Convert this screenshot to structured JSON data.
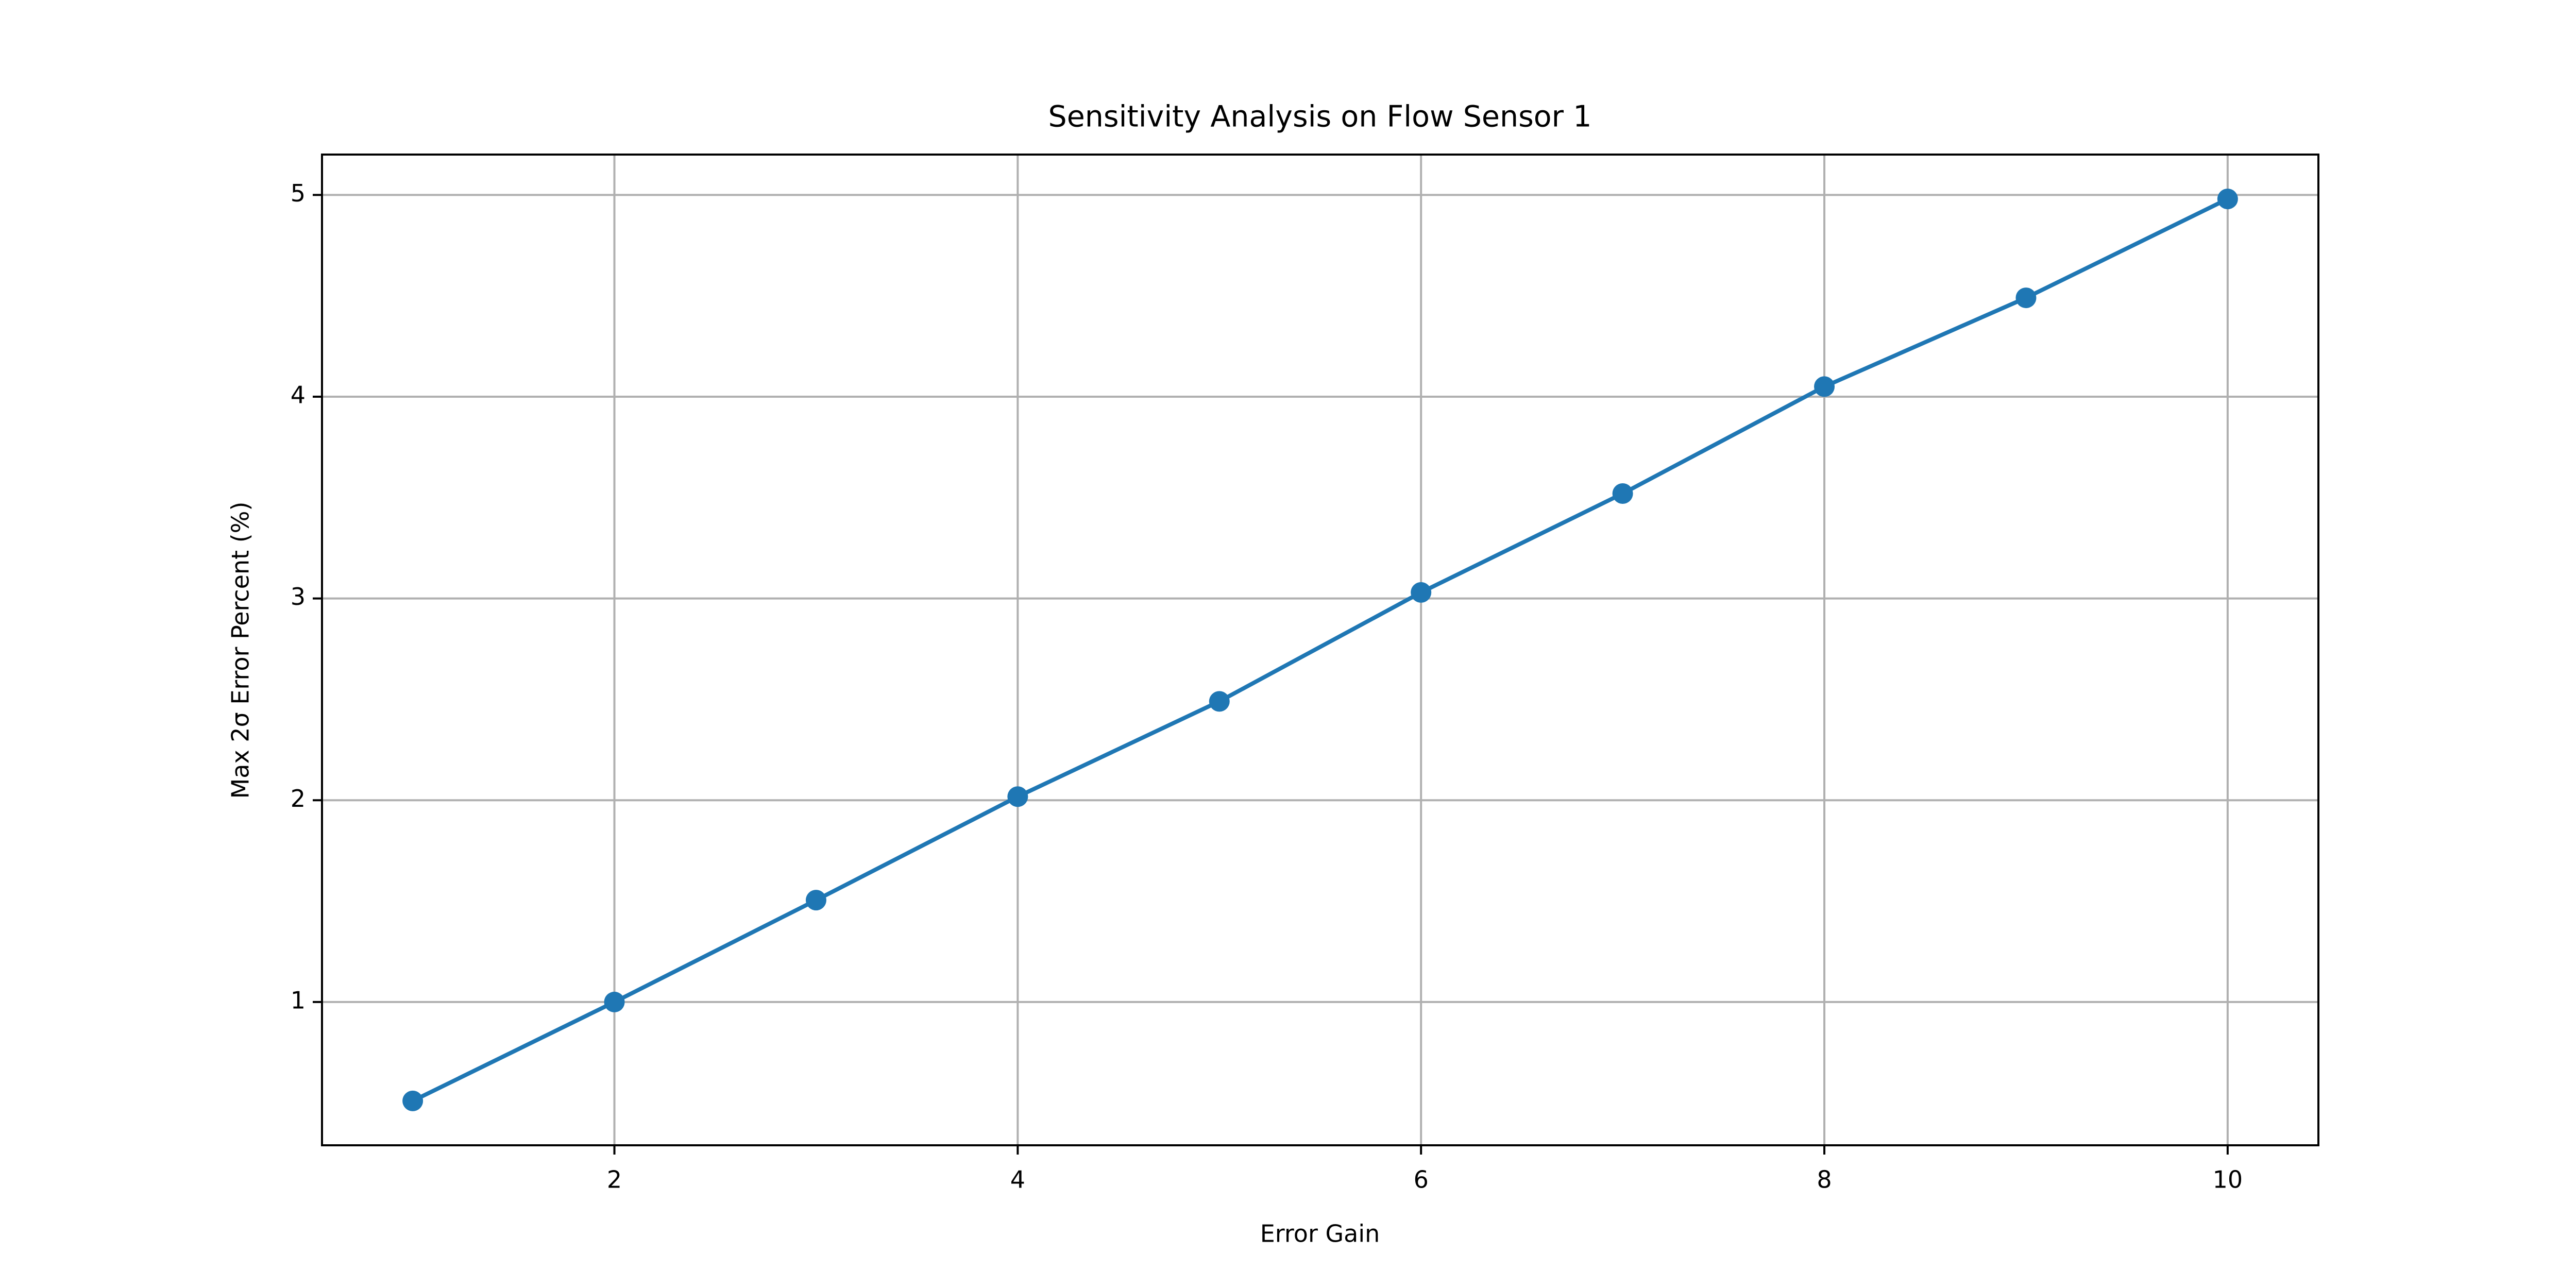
{
  "chart_data": {
    "type": "line",
    "title": "Sensitivity Analysis on Flow Sensor 1",
    "x_label": "Error Gain",
    "y_label": "Max 2σ Error Percent (%)",
    "x": [
      1,
      2,
      3,
      4,
      5,
      6,
      7,
      8,
      9,
      10
    ],
    "values": [
      0.51,
      1.0,
      1.505,
      2.018,
      2.49,
      3.03,
      3.52,
      4.05,
      4.49,
      4.98
    ],
    "color": "#1f77b4",
    "markers": true,
    "xlim": [
      0.55,
      10.45
    ],
    "xticks": [
      2,
      4,
      6,
      8,
      10
    ],
    "ylim": [
      0.29,
      5.2
    ],
    "yticks": [
      1,
      2,
      3,
      4,
      5
    ],
    "grid": true
  }
}
